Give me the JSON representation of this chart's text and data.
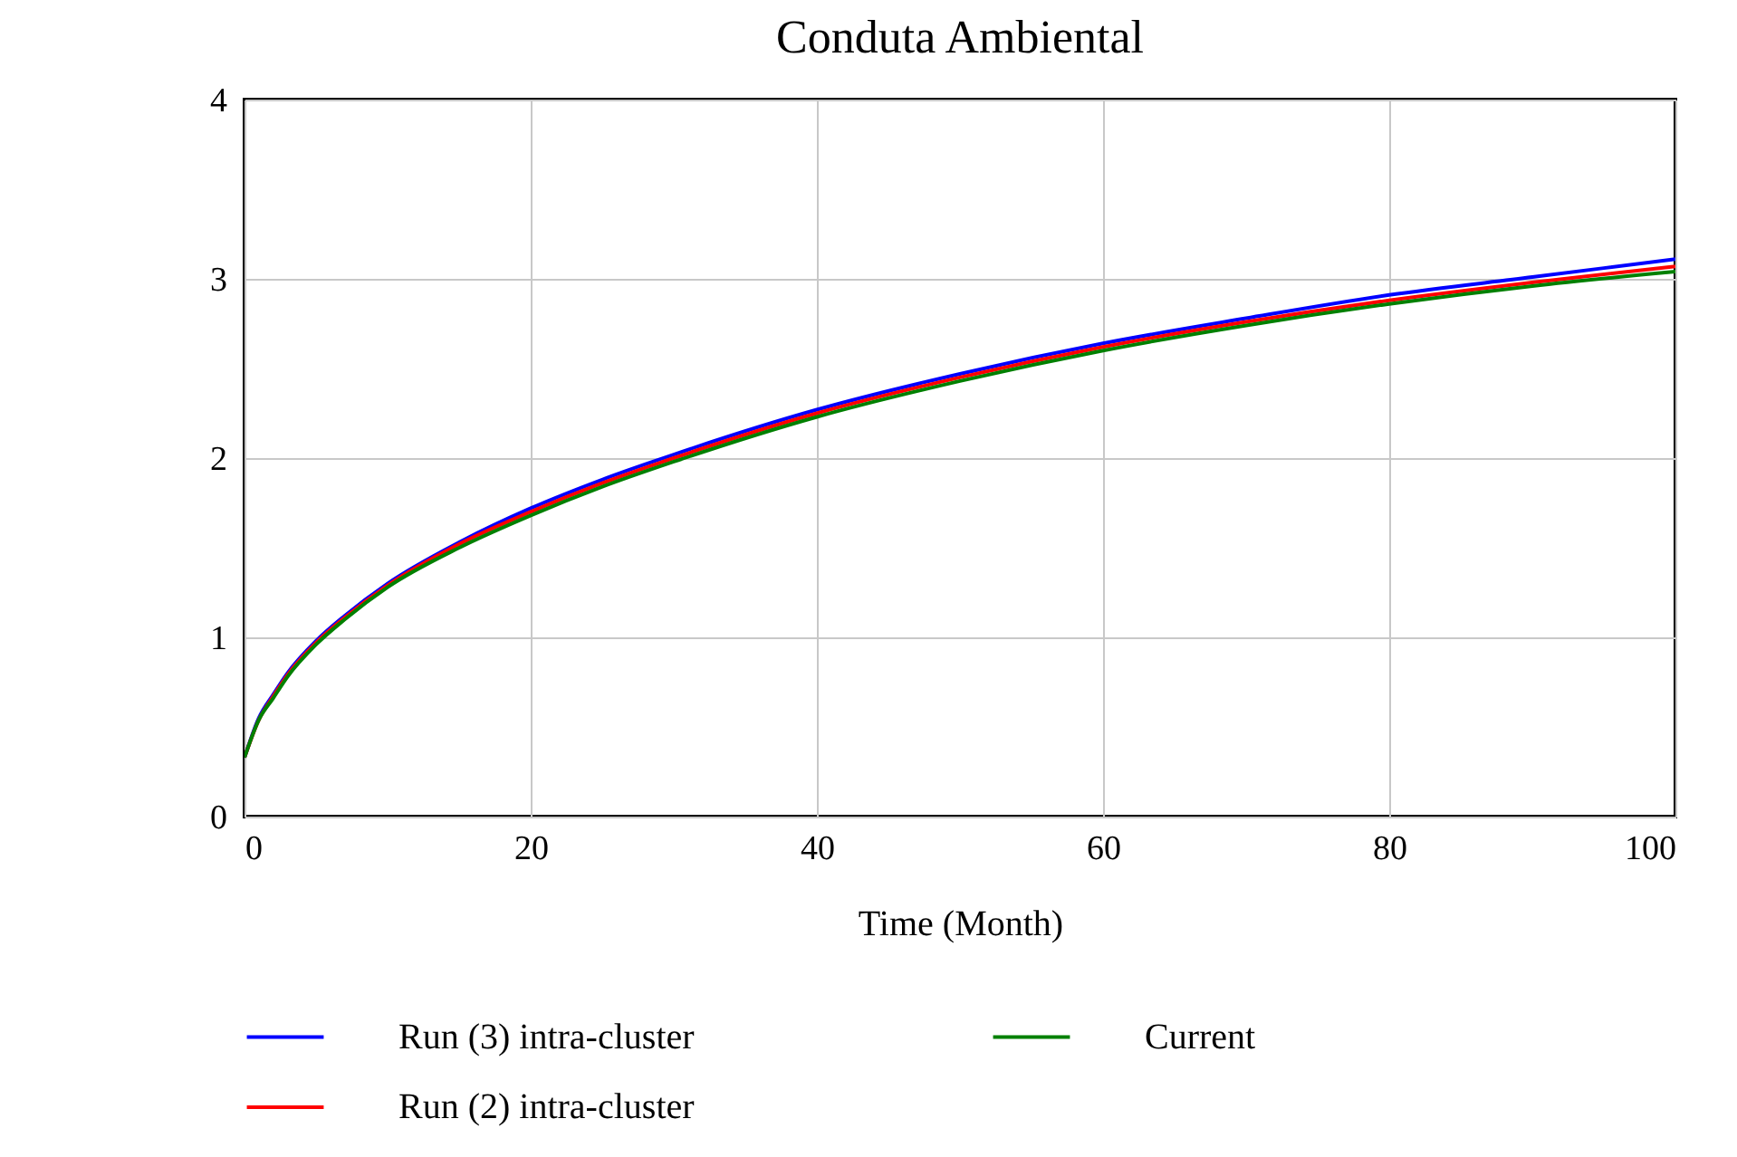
{
  "chart_data": {
    "type": "line",
    "title": "Conduta Ambiental",
    "xlabel": "Time (Month)",
    "x": [
      0,
      1,
      2,
      3,
      5,
      7,
      10,
      15,
      20,
      25,
      30,
      40,
      50,
      60,
      70,
      80,
      90,
      100
    ],
    "series": [
      {
        "name": "Run (3) intra-cluster",
        "color": "#0000ff",
        "values": [
          0.33,
          0.55,
          0.68,
          0.8,
          0.98,
          1.12,
          1.3,
          1.53,
          1.72,
          1.88,
          2.02,
          2.27,
          2.47,
          2.64,
          2.78,
          2.91,
          3.01,
          3.11
        ]
      },
      {
        "name": "Run (2) intra-cluster",
        "color": "#ff0000",
        "values": [
          0.33,
          0.54,
          0.67,
          0.79,
          0.97,
          1.11,
          1.29,
          1.52,
          1.7,
          1.86,
          2.0,
          2.25,
          2.45,
          2.62,
          2.76,
          2.88,
          2.98,
          3.07
        ]
      },
      {
        "name": "Current",
        "color": "#008000",
        "values": [
          0.33,
          0.54,
          0.66,
          0.78,
          0.96,
          1.1,
          1.28,
          1.5,
          1.68,
          1.84,
          1.98,
          2.23,
          2.43,
          2.6,
          2.74,
          2.86,
          2.96,
          3.04
        ]
      }
    ],
    "xlim": [
      0,
      100
    ],
    "xticks": [
      0,
      20,
      40,
      60,
      80,
      100
    ],
    "ylim": [
      0,
      4
    ],
    "yticks": [
      0,
      1,
      2,
      3,
      4
    ],
    "grid": true,
    "legend": "bottom",
    "marker": "none",
    "line_style": "solid"
  }
}
